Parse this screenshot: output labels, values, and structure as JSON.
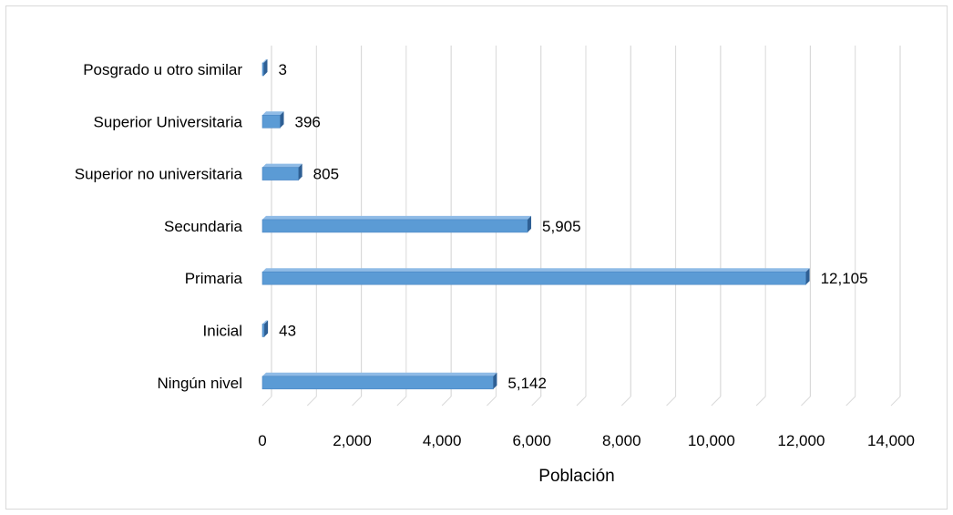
{
  "chart_data": {
    "type": "bar",
    "orientation": "horizontal",
    "categories": [
      "Posgrado u otro similar",
      "Superior Universitaria",
      "Superior no universitaria",
      "Secundaria",
      "Primaria",
      "Inicial",
      "Ningún nivel"
    ],
    "values": [
      3,
      396,
      805,
      5905,
      12105,
      43,
      5142
    ],
    "data_labels": [
      "3",
      "396",
      "805",
      "5,905",
      "12,105",
      "43",
      "5,142"
    ],
    "xlabel": "Población",
    "ylabel": "",
    "title": "",
    "xlim": [
      0,
      14000
    ],
    "x_ticks": [
      0,
      2000,
      4000,
      6000,
      8000,
      10000,
      12000,
      14000
    ],
    "x_tick_labels": [
      "0",
      "2,000",
      "4,000",
      "6,000",
      "8,000",
      "10,000",
      "12,000",
      "14,000"
    ],
    "grid": true,
    "legend": "none",
    "colors": {
      "bar": "#5b9bd5",
      "bar_dark": "#2e5f94",
      "grid": "#d9d9d9"
    }
  }
}
